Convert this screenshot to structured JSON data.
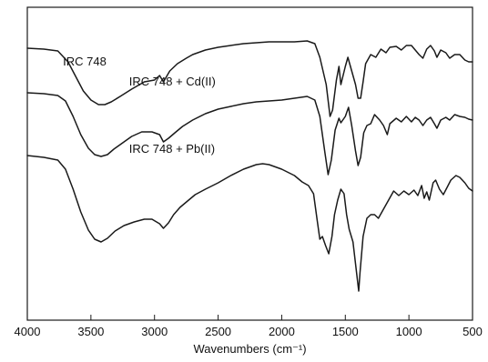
{
  "chart_data": {
    "type": "line",
    "title": "",
    "xlabel": "Wavenumbers (cm⁻¹)",
    "ylabel": "",
    "xlim": [
      4000,
      500
    ],
    "x_reversed": true,
    "grid": false,
    "x_ticks": [
      4000,
      3500,
      3000,
      2500,
      2000,
      1500,
      1000,
      500
    ],
    "x_tick_labels": [
      "4000",
      "3500",
      "3000",
      "2500",
      "2000",
      "1500",
      "1000",
      "500"
    ],
    "series": [
      {
        "name": "IRC 748",
        "points": [
          [
            4000,
            45
          ],
          [
            3870,
            46
          ],
          [
            3760,
            48
          ],
          [
            3680,
            60
          ],
          [
            3620,
            76
          ],
          [
            3560,
            92
          ],
          [
            3500,
            102
          ],
          [
            3440,
            107
          ],
          [
            3390,
            107
          ],
          [
            3340,
            104
          ],
          [
            3270,
            98
          ],
          [
            3180,
            90
          ],
          [
            3080,
            82
          ],
          [
            3000,
            80
          ],
          [
            2960,
            75
          ],
          [
            2930,
            82
          ],
          [
            2880,
            70
          ],
          [
            2820,
            62
          ],
          [
            2750,
            56
          ],
          [
            2700,
            52
          ],
          [
            2600,
            47
          ],
          [
            2500,
            44
          ],
          [
            2400,
            42
          ],
          [
            2300,
            40
          ],
          [
            2200,
            39
          ],
          [
            2100,
            38
          ],
          [
            2000,
            38
          ],
          [
            1900,
            38
          ],
          [
            1800,
            37
          ],
          [
            1740,
            40
          ],
          [
            1700,
            55
          ],
          [
            1650,
            85
          ],
          [
            1620,
            120
          ],
          [
            1600,
            113
          ],
          [
            1570,
            80
          ],
          [
            1550,
            65
          ],
          [
            1535,
            85
          ],
          [
            1500,
            65
          ],
          [
            1480,
            55
          ],
          [
            1450,
            70
          ],
          [
            1420,
            85
          ],
          [
            1400,
            100
          ],
          [
            1380,
            100
          ],
          [
            1360,
            82
          ],
          [
            1340,
            62
          ],
          [
            1300,
            52
          ],
          [
            1260,
            55
          ],
          [
            1220,
            46
          ],
          [
            1180,
            50
          ],
          [
            1150,
            44
          ],
          [
            1100,
            43
          ],
          [
            1060,
            47
          ],
          [
            1020,
            42
          ],
          [
            980,
            42
          ],
          [
            950,
            47
          ],
          [
            920,
            52
          ],
          [
            890,
            56
          ],
          [
            860,
            46
          ],
          [
            830,
            42
          ],
          [
            800,
            48
          ],
          [
            780,
            55
          ],
          [
            750,
            47
          ],
          [
            710,
            50
          ],
          [
            680,
            56
          ],
          [
            640,
            52
          ],
          [
            600,
            52
          ],
          [
            560,
            58
          ],
          [
            530,
            60
          ],
          [
            500,
            60
          ]
        ]
      },
      {
        "name": "IRC 748 + Cd(II)",
        "points": [
          [
            4000,
            94
          ],
          [
            3870,
            95
          ],
          [
            3760,
            97
          ],
          [
            3700,
            103
          ],
          [
            3640,
            120
          ],
          [
            3580,
            140
          ],
          [
            3520,
            155
          ],
          [
            3470,
            162
          ],
          [
            3420,
            164
          ],
          [
            3370,
            162
          ],
          [
            3320,
            156
          ],
          [
            3260,
            150
          ],
          [
            3180,
            142
          ],
          [
            3100,
            137
          ],
          [
            3020,
            137
          ],
          [
            2960,
            140
          ],
          [
            2930,
            148
          ],
          [
            2890,
            144
          ],
          [
            2840,
            138
          ],
          [
            2780,
            131
          ],
          [
            2700,
            124
          ],
          [
            2600,
            117
          ],
          [
            2500,
            112
          ],
          [
            2400,
            109
          ],
          [
            2300,
            106
          ],
          [
            2200,
            104
          ],
          [
            2100,
            103
          ],
          [
            2000,
            102
          ],
          [
            1900,
            100
          ],
          [
            1800,
            98
          ],
          [
            1740,
            102
          ],
          [
            1700,
            120
          ],
          [
            1660,
            160
          ],
          [
            1635,
            184
          ],
          [
            1610,
            168
          ],
          [
            1580,
            135
          ],
          [
            1550,
            122
          ],
          [
            1535,
            127
          ],
          [
            1500,
            120
          ],
          [
            1475,
            110
          ],
          [
            1450,
            130
          ],
          [
            1420,
            158
          ],
          [
            1400,
            174
          ],
          [
            1380,
            165
          ],
          [
            1355,
            138
          ],
          [
            1330,
            130
          ],
          [
            1300,
            128
          ],
          [
            1270,
            118
          ],
          [
            1230,
            124
          ],
          [
            1200,
            130
          ],
          [
            1170,
            140
          ],
          [
            1150,
            128
          ],
          [
            1100,
            122
          ],
          [
            1060,
            126
          ],
          [
            1020,
            120
          ],
          [
            980,
            126
          ],
          [
            950,
            121
          ],
          [
            920,
            124
          ],
          [
            890,
            130
          ],
          [
            860,
            124
          ],
          [
            830,
            121
          ],
          [
            800,
            128
          ],
          [
            780,
            133
          ],
          [
            750,
            124
          ],
          [
            710,
            121
          ],
          [
            680,
            124
          ],
          [
            640,
            118
          ],
          [
            600,
            120
          ],
          [
            560,
            121
          ],
          [
            530,
            123
          ],
          [
            500,
            124
          ]
        ]
      },
      {
        "name": "IRC 748 + Pb(II)",
        "points": [
          [
            4000,
            163
          ],
          [
            3870,
            165
          ],
          [
            3760,
            168
          ],
          [
            3700,
            178
          ],
          [
            3640,
            200
          ],
          [
            3580,
            225
          ],
          [
            3520,
            245
          ],
          [
            3470,
            255
          ],
          [
            3420,
            258
          ],
          [
            3370,
            254
          ],
          [
            3310,
            246
          ],
          [
            3240,
            240
          ],
          [
            3160,
            236
          ],
          [
            3080,
            233
          ],
          [
            3020,
            233
          ],
          [
            2960,
            238
          ],
          [
            2930,
            243
          ],
          [
            2890,
            237
          ],
          [
            2850,
            228
          ],
          [
            2800,
            220
          ],
          [
            2740,
            213
          ],
          [
            2680,
            206
          ],
          [
            2600,
            200
          ],
          [
            2500,
            193
          ],
          [
            2400,
            185
          ],
          [
            2300,
            178
          ],
          [
            2200,
            173
          ],
          [
            2150,
            172
          ],
          [
            2100,
            173
          ],
          [
            2000,
            178
          ],
          [
            1900,
            185
          ],
          [
            1840,
            192
          ],
          [
            1790,
            196
          ],
          [
            1750,
            205
          ],
          [
            1720,
            235
          ],
          [
            1700,
            255
          ],
          [
            1680,
            252
          ],
          [
            1655,
            262
          ],
          [
            1630,
            271
          ],
          [
            1605,
            252
          ],
          [
            1585,
            228
          ],
          [
            1560,
            212
          ],
          [
            1535,
            200
          ],
          [
            1510,
            205
          ],
          [
            1490,
            228
          ],
          [
            1470,
            244
          ],
          [
            1440,
            258
          ],
          [
            1420,
            282
          ],
          [
            1405,
            300
          ],
          [
            1395,
            312
          ],
          [
            1385,
            292
          ],
          [
            1360,
            252
          ],
          [
            1330,
            232
          ],
          [
            1300,
            228
          ],
          [
            1270,
            228
          ],
          [
            1240,
            232
          ],
          [
            1200,
            222
          ],
          [
            1160,
            212
          ],
          [
            1120,
            202
          ],
          [
            1080,
            207
          ],
          [
            1040,
            202
          ],
          [
            1000,
            206
          ],
          [
            960,
            201
          ],
          [
            930,
            207
          ],
          [
            900,
            196
          ],
          [
            880,
            210
          ],
          [
            860,
            203
          ],
          [
            840,
            212
          ],
          [
            810,
            193
          ],
          [
            790,
            190
          ],
          [
            760,
            200
          ],
          [
            730,
            206
          ],
          [
            700,
            198
          ],
          [
            670,
            190
          ],
          [
            630,
            185
          ],
          [
            600,
            187
          ],
          [
            560,
            193
          ],
          [
            530,
            199
          ],
          [
            500,
            202
          ]
        ]
      }
    ],
    "annotations": [
      {
        "text": "IRC 748",
        "x": 3720,
        "y": 64
      },
      {
        "text": "IRC 748 + Cd(II)",
        "x": 3200,
        "y": 86
      },
      {
        "text": "IRC 748 + Pb(II)",
        "x": 3200,
        "y": 160
      }
    ]
  }
}
